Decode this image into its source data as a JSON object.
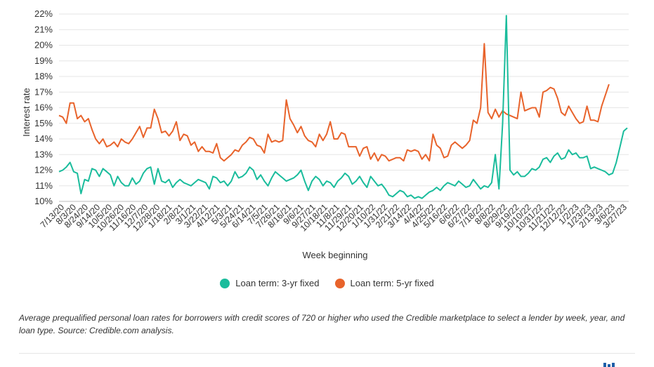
{
  "chart_data": {
    "type": "line",
    "title": "",
    "xlabel": "Week beginning",
    "ylabel": "Interest rate",
    "ylim": [
      10,
      22
    ],
    "yticks": [
      "10%",
      "11%",
      "12%",
      "13%",
      "14%",
      "15%",
      "16%",
      "17%",
      "18%",
      "19%",
      "20%",
      "21%",
      "22%"
    ],
    "xtick_labels": [
      "7/13/20",
      "8/3/20",
      "8/24/20",
      "9/14/20",
      "10/5/20",
      "10/26/20",
      "11/16/20",
      "12/7/20",
      "12/28/20",
      "1/18/21",
      "2/8/21",
      "3/1/21",
      "3/22/21",
      "4/12/21",
      "5/3/21",
      "5/24/21",
      "6/14/21",
      "7/5/21",
      "7/26/21",
      "8/16/21",
      "9/6/21",
      "9/27/21",
      "10/18/21",
      "11/8/21",
      "11/29/21",
      "12/20/21",
      "1/10/22",
      "1/31/22",
      "2/21/22",
      "3/14/22",
      "4/4/22",
      "4/25/22",
      "5/16/22",
      "6/6/22",
      "6/27/22",
      "7/18/22",
      "8/8/22",
      "8/29/22",
      "9/19/22",
      "10/10/22",
      "10/31/22",
      "11/21/22",
      "12/12/22",
      "1/2/23",
      "1/23/23",
      "2/13/23",
      "3/6/23",
      "3/27/23"
    ],
    "grid": true,
    "legend_position": "bottom",
    "series": [
      {
        "name": "Loan term: 3-yr fixed",
        "color": "#1abc9c",
        "values": [
          11.9,
          12.0,
          12.2,
          12.5,
          11.9,
          11.8,
          10.5,
          11.4,
          11.3,
          12.1,
          12.0,
          11.6,
          12.1,
          11.9,
          11.7,
          11.0,
          11.6,
          11.2,
          11.0,
          11.0,
          11.5,
          11.1,
          11.3,
          11.8,
          12.1,
          12.2,
          11.1,
          12.1,
          11.3,
          11.2,
          11.4,
          10.9,
          11.2,
          11.4,
          11.2,
          11.1,
          11.0,
          11.2,
          11.4,
          11.3,
          11.2,
          10.8,
          11.6,
          11.5,
          11.2,
          11.3,
          11.0,
          11.3,
          11.9,
          11.5,
          11.6,
          11.8,
          12.2,
          12.0,
          11.4,
          11.7,
          11.3,
          11.0,
          11.5,
          11.9,
          11.7,
          11.5,
          11.3,
          11.4,
          11.5,
          11.7,
          12.0,
          11.3,
          10.7,
          11.3,
          11.6,
          11.4,
          11.0,
          11.3,
          11.2,
          10.9,
          11.3,
          11.5,
          11.8,
          11.6,
          11.1,
          11.3,
          11.6,
          11.2,
          10.9,
          11.6,
          11.3,
          11.0,
          11.1,
          10.8,
          10.4,
          10.3,
          10.5,
          10.7,
          10.6,
          10.3,
          10.4,
          10.2,
          10.3,
          10.2,
          10.4,
          10.6,
          10.7,
          10.9,
          10.7,
          11.0,
          11.2,
          11.1,
          11.0,
          11.3,
          11.1,
          10.9,
          11.0,
          11.4,
          11.1,
          10.8,
          11.0,
          10.9,
          11.2,
          13.0,
          10.8,
          15.0,
          21.9,
          12.0,
          11.7,
          11.9,
          11.6,
          11.6,
          11.8,
          12.1,
          12.0,
          12.2,
          12.7,
          12.8,
          12.5,
          12.9,
          13.1,
          12.7,
          12.8,
          13.3,
          13.0,
          13.1,
          12.8,
          12.8,
          12.9,
          12.1,
          12.2,
          12.1,
          12.0,
          11.9,
          11.7,
          11.8,
          12.5,
          13.5,
          14.5,
          14.7
        ]
      },
      {
        "name": "Loan term: 5-yr fixed",
        "color": "#e8632b",
        "values": [
          15.5,
          15.4,
          15.0,
          16.3,
          16.3,
          15.3,
          15.5,
          15.1,
          15.3,
          14.6,
          14.0,
          13.7,
          14.0,
          13.5,
          13.6,
          13.8,
          13.5,
          14.0,
          13.8,
          13.7,
          14.0,
          14.4,
          14.8,
          14.1,
          14.7,
          14.7,
          15.9,
          15.3,
          14.4,
          14.5,
          14.2,
          14.5,
          15.1,
          13.9,
          14.3,
          14.2,
          13.6,
          13.8,
          13.2,
          13.5,
          13.2,
          13.2,
          13.1,
          13.7,
          12.8,
          12.6,
          12.8,
          13.0,
          13.3,
          13.2,
          13.6,
          13.8,
          14.1,
          14.0,
          13.6,
          13.5,
          13.1,
          14.3,
          13.8,
          13.9,
          13.8,
          13.9,
          16.5,
          15.3,
          14.9,
          14.4,
          14.8,
          14.2,
          13.9,
          13.8,
          13.5,
          14.3,
          13.9,
          14.3,
          15.1,
          14.0,
          14.0,
          14.4,
          14.3,
          13.5,
          13.5,
          13.5,
          12.9,
          13.4,
          13.5,
          12.7,
          13.1,
          12.6,
          13.0,
          12.9,
          12.6,
          12.7,
          12.8,
          12.8,
          12.6,
          13.3,
          13.2,
          13.3,
          13.2,
          12.7,
          13.0,
          12.6,
          14.3,
          13.6,
          13.4,
          12.8,
          12.9,
          13.6,
          13.8,
          13.6,
          13.4,
          13.6,
          13.9,
          15.2,
          15.0,
          16.0,
          20.1,
          15.7,
          15.3,
          15.9,
          15.4,
          15.8,
          15.6,
          15.5,
          15.4,
          15.3,
          17.0,
          15.8,
          15.9,
          16.0,
          16.0,
          15.4,
          17.0,
          17.1,
          17.3,
          17.2,
          16.6,
          15.7,
          15.5,
          16.1,
          15.7,
          15.3,
          15.0,
          15.1,
          16.1,
          15.2,
          15.2,
          15.1,
          16.1,
          16.8,
          17.5
        ]
      }
    ]
  },
  "legend": {
    "s1": "Loan term: 3-yr fixed",
    "s2": "Loan term: 5-yr fixed",
    "s1_color": "#1abc9c",
    "s2_color": "#e8632b"
  },
  "caption": "Average prequalified personal loan rates for borrowers with credit scores of 720 or higher who used the Credible marketplace to select a lender by week, year, and loan type. Source: Credible.com analysis."
}
